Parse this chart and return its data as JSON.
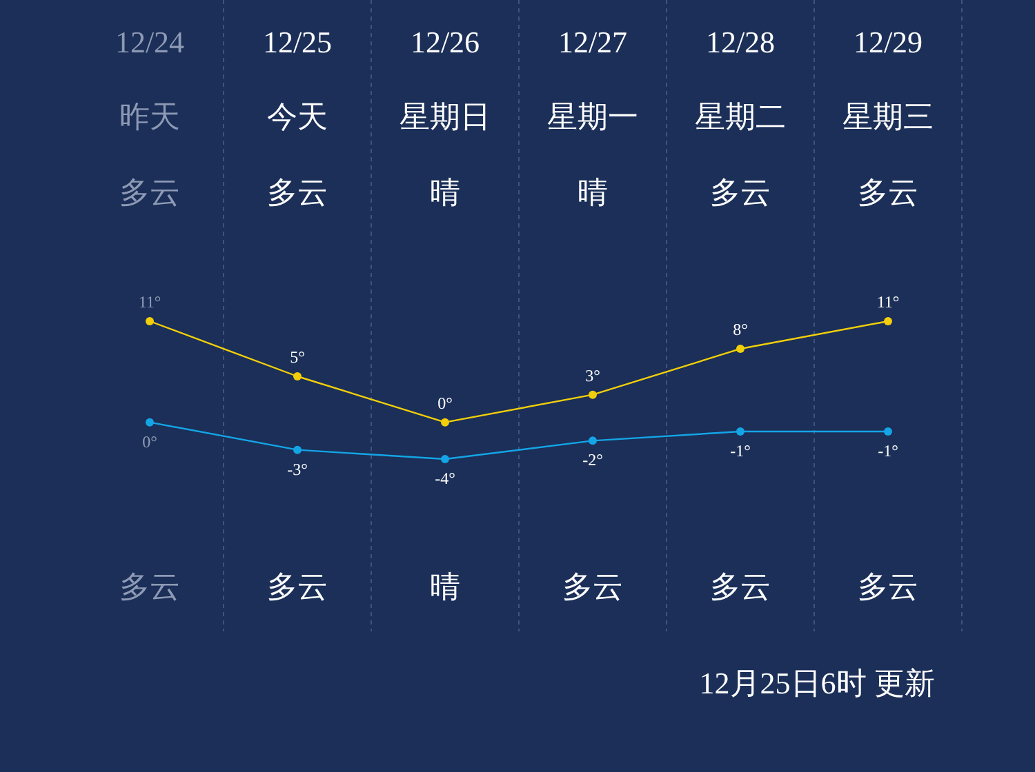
{
  "chart_data": {
    "type": "line",
    "categories": [
      "12/24",
      "12/25",
      "12/26",
      "12/27",
      "12/28",
      "12/29"
    ],
    "series": [
      {
        "color": "#f2cf0a",
        "values": [
          11,
          5,
          0,
          3,
          8,
          11
        ],
        "value_labels": [
          "11°",
          "5°",
          "0°",
          "3°",
          "8°",
          "11°"
        ]
      },
      {
        "color": "#14a5e6",
        "values": [
          0,
          -3,
          -4,
          -2,
          -1,
          -1
        ],
        "value_labels": [
          "0°",
          "-3°",
          "-4°",
          "-2°",
          "-1°",
          "-1°"
        ]
      }
    ],
    "marker": "circle",
    "grid": "x",
    "annotations": [
      "昨天",
      "今天",
      "星期日",
      "星期一",
      "星期二",
      "星期三",
      "多云",
      "多云",
      "晴",
      "晴",
      "多云",
      "多云",
      "多云",
      "多云",
      "晴",
      "多云",
      "多云",
      "多云",
      "12月25日6时 更新"
    ]
  }
}
